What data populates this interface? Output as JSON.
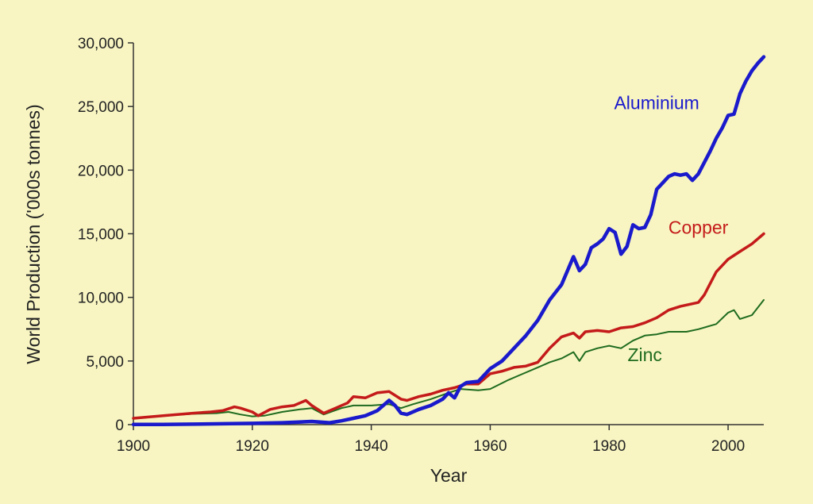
{
  "chart_data": {
    "type": "line",
    "title": "",
    "xlabel": "Year",
    "ylabel": "World Production ('000s tonnes)",
    "xlim": [
      1900,
      2006
    ],
    "ylim": [
      0,
      30000
    ],
    "x_ticks": [
      1900,
      1920,
      1940,
      1960,
      1980,
      2000
    ],
    "x_tick_labels": [
      "1900",
      "1920",
      "1940",
      "1960",
      "1980",
      "2000"
    ],
    "y_ticks": [
      0,
      5000,
      10000,
      15000,
      20000,
      25000,
      30000
    ],
    "y_tick_labels": [
      "0",
      "5,000",
      "10,000",
      "15,000",
      "20,000",
      "25,000",
      "30,000"
    ],
    "grid": false,
    "legend": "none",
    "series": [
      {
        "name": "Aluminium",
        "color": "#1a1acc",
        "x": [
          1900,
          1905,
          1910,
          1915,
          1920,
          1925,
          1930,
          1933,
          1935,
          1937,
          1939,
          1941,
          1943,
          1944,
          1945,
          1946,
          1948,
          1950,
          1952,
          1953,
          1954,
          1955,
          1956,
          1958,
          1960,
          1962,
          1964,
          1966,
          1968,
          1970,
          1972,
          1974,
          1975,
          1976,
          1977,
          1978,
          1979,
          1980,
          1981,
          1982,
          1983,
          1984,
          1985,
          1986,
          1987,
          1988,
          1989,
          1990,
          1991,
          1992,
          1993,
          1994,
          1995,
          1996,
          1997,
          1998,
          1999,
          2000,
          2001,
          2002,
          2003,
          2004,
          2005,
          2006
        ],
        "y": [
          10,
          20,
          40,
          70,
          100,
          150,
          250,
          150,
          300,
          500,
          700,
          1100,
          1900,
          1500,
          900,
          800,
          1200,
          1500,
          2000,
          2500,
          2100,
          3000,
          3300,
          3400,
          4400,
          5000,
          6000,
          7000,
          8200,
          9800,
          11000,
          13200,
          12100,
          12600,
          13900,
          14200,
          14600,
          15400,
          15100,
          13400,
          14000,
          15700,
          15400,
          15500,
          16500,
          18500,
          19000,
          19500,
          19700,
          19600,
          19700,
          19200,
          19700,
          20600,
          21500,
          22500,
          23300,
          24300,
          24400,
          26000,
          27000,
          27800,
          28400,
          28900
        ]
      },
      {
        "name": "Copper",
        "color": "#c41a1a",
        "x": [
          1900,
          1905,
          1910,
          1913,
          1915,
          1917,
          1918,
          1920,
          1921,
          1923,
          1925,
          1927,
          1929,
          1930,
          1932,
          1934,
          1936,
          1937,
          1939,
          1941,
          1943,
          1945,
          1946,
          1948,
          1950,
          1952,
          1954,
          1956,
          1958,
          1960,
          1962,
          1964,
          1966,
          1968,
          1970,
          1972,
          1974,
          1975,
          1976,
          1978,
          1980,
          1982,
          1984,
          1986,
          1988,
          1990,
          1992,
          1994,
          1995,
          1996,
          1998,
          2000,
          2002,
          2004,
          2006
        ],
        "y": [
          500,
          700,
          900,
          1000,
          1100,
          1400,
          1300,
          1000,
          700,
          1200,
          1400,
          1500,
          1900,
          1500,
          900,
          1300,
          1700,
          2200,
          2100,
          2500,
          2600,
          2000,
          1900,
          2200,
          2400,
          2700,
          2900,
          3200,
          3200,
          4000,
          4200,
          4500,
          4600,
          4900,
          6000,
          6900,
          7200,
          6800,
          7300,
          7400,
          7300,
          7600,
          7700,
          8000,
          8400,
          9000,
          9300,
          9500,
          9600,
          10200,
          12000,
          13000,
          13600,
          14200,
          15000
        ]
      },
      {
        "name": "Zinc",
        "color": "#1f6b1f",
        "x": [
          1900,
          1905,
          1910,
          1914,
          1916,
          1918,
          1920,
          1922,
          1925,
          1928,
          1930,
          1932,
          1935,
          1937,
          1940,
          1943,
          1945,
          1947,
          1950,
          1953,
          1955,
          1958,
          1960,
          1963,
          1965,
          1968,
          1970,
          1972,
          1974,
          1975,
          1976,
          1978,
          1980,
          1982,
          1984,
          1986,
          1988,
          1990,
          1993,
          1995,
          1998,
          2000,
          2001,
          2002,
          2004,
          2006
        ],
        "y": [
          480,
          700,
          850,
          900,
          1000,
          800,
          650,
          700,
          1000,
          1200,
          1300,
          800,
          1300,
          1500,
          1500,
          1600,
          1300,
          1600,
          2000,
          2500,
          2800,
          2700,
          2800,
          3500,
          3900,
          4500,
          4900,
          5200,
          5700,
          5000,
          5700,
          6000,
          6200,
          6000,
          6600,
          7000,
          7100,
          7300,
          7300,
          7500,
          7900,
          8800,
          9000,
          8300,
          8600,
          9800
        ]
      }
    ],
    "annotations": [
      {
        "series": "Aluminium",
        "text": "Aluminium",
        "x": 1988,
        "y": 24800
      },
      {
        "series": "Copper",
        "text": "Copper",
        "x": 1995,
        "y": 15000
      },
      {
        "series": "Zinc",
        "text": "Zinc",
        "x": 1986,
        "y": 5000
      }
    ]
  }
}
